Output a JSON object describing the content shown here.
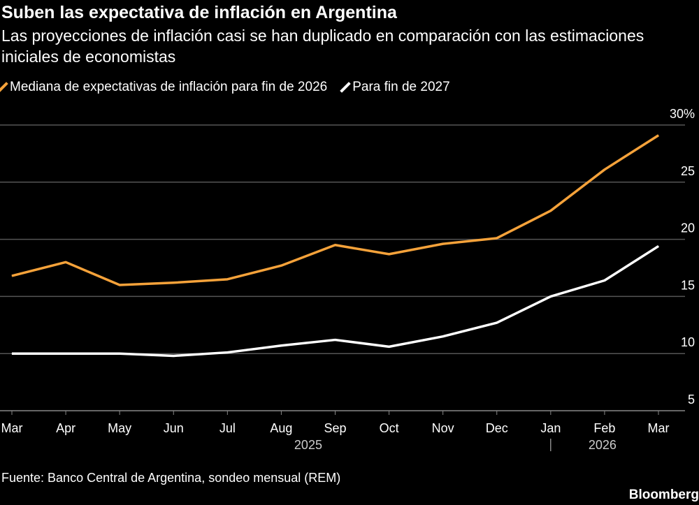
{
  "title": "Suben las expectativa de inflación en Argentina",
  "subtitle": "Las proyecciones de inflación casi se han duplicado en comparación con las estimaciones iniciales de economistas",
  "source": "Fuente: Banco Central de Argentina, sondeo mensual (REM)",
  "logo": "Bloomberg",
  "chart_data": {
    "type": "line",
    "categories": [
      "Mar",
      "Apr",
      "May",
      "Jun",
      "Jul",
      "Aug",
      "Sep",
      "Oct",
      "Nov",
      "Dec",
      "Jan",
      "Feb",
      "Mar"
    ],
    "year_labels": [
      {
        "label": "2025",
        "at": "Aug–Sep"
      },
      {
        "label": "2026",
        "at": "Feb"
      }
    ],
    "year_labels_text": [
      "2025",
      "2026"
    ],
    "series": [
      {
        "name": "Mediana de expectativas de inflación para fin de 2026",
        "color": "#f5a23a",
        "values": [
          16.8,
          18.0,
          16.0,
          16.2,
          16.5,
          17.7,
          19.5,
          18.7,
          19.6,
          20.1,
          22.5,
          26.1,
          29.1
        ]
      },
      {
        "name": "Para fin de 2027",
        "color": "#ffffff",
        "values": [
          10.0,
          10.0,
          10.0,
          9.8,
          10.1,
          10.7,
          11.2,
          10.6,
          11.5,
          12.7,
          15.0,
          16.4,
          19.4
        ]
      }
    ],
    "yticks": [
      "30%",
      "25",
      "20",
      "15",
      "10",
      "5"
    ],
    "ytick_values": [
      30,
      25,
      20,
      15,
      10,
      5
    ],
    "ylim": [
      5,
      30
    ],
    "y_axis_position": "right",
    "grid": true,
    "legend_placement": "top-left"
  }
}
